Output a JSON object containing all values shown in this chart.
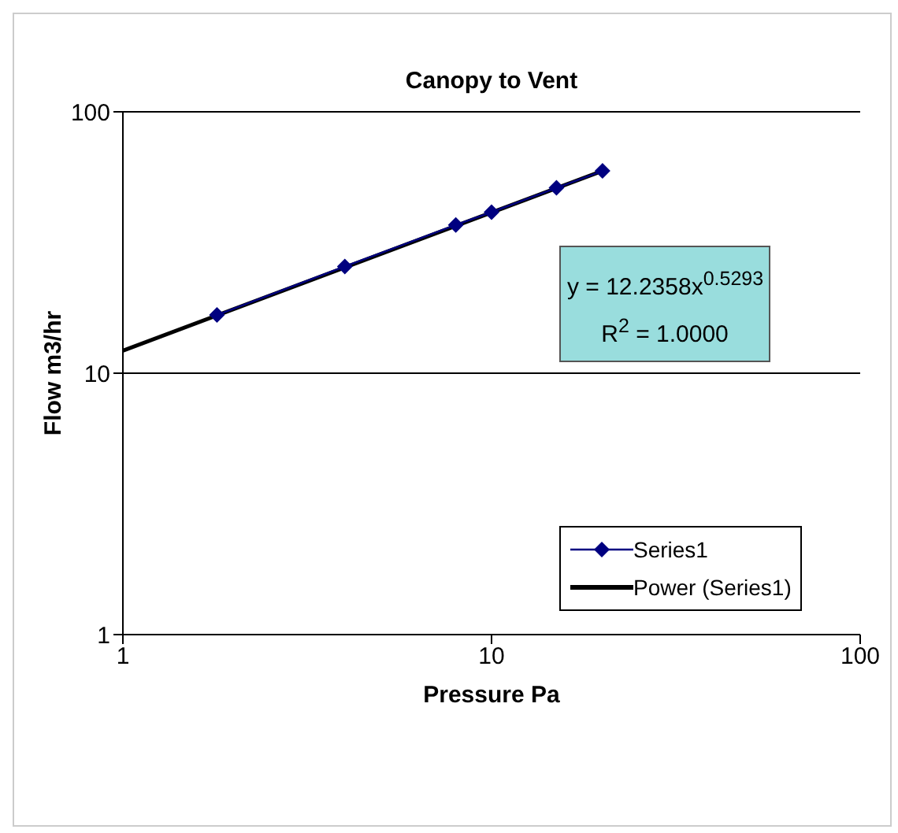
{
  "chart_data": {
    "type": "line",
    "title": "Canopy to Vent",
    "xlabel": "Pressure Pa",
    "ylabel": "Flow m3/hr",
    "log": "xy",
    "xlim": [
      1,
      100
    ],
    "ylim": [
      1,
      100
    ],
    "xticks": [
      1,
      10,
      100
    ],
    "yticks": [
      1,
      10,
      100
    ],
    "grid": "y",
    "legend": "bottom right",
    "annotations": [
      "y = 12.2358x$^{0.5293}$",
      "R$^{2}$ = 1.0000"
    ],
    "series": [
      {
        "name": "Series1",
        "color": "#000080",
        "marker": "diamond",
        "x": [
          1.8,
          4,
          8,
          10,
          15,
          20
        ],
        "values": [
          16.7,
          25.6,
          36.9,
          41.3,
          51.2,
          59.4
        ]
      },
      {
        "name": "Power (Series1)",
        "color": "#000000",
        "marker": "none",
        "x": [
          1,
          20
        ],
        "values": [
          12.2,
          59.4
        ]
      }
    ]
  }
}
